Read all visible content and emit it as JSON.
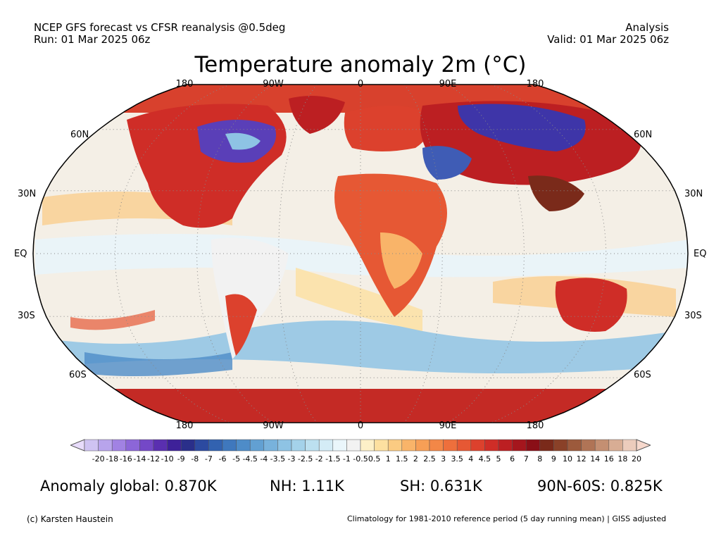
{
  "header": {
    "source_line": "NCEP GFS forecast vs CFSR reanalysis @0.5deg",
    "run_line": "Run: 01 Mar 2025 06z",
    "analysis_label": "Analysis",
    "valid_line": "Valid: 01 Mar 2025 06z"
  },
  "title": "Temperature anomaly 2m (°C)",
  "map": {
    "projection": "robinson",
    "graticule": "dotted",
    "lon_labels_top": [
      "180",
      "90W",
      "0",
      "90E",
      "180"
    ],
    "lon_labels_bottom": [
      "180",
      "90W",
      "0",
      "90E",
      "180"
    ],
    "lat_labels_left": [
      "60N",
      "30N",
      "EQ",
      "30S",
      "60S"
    ],
    "lat_labels_right": [
      "60N",
      "30N",
      "EQ",
      "30S",
      "60S"
    ],
    "background_color": "#f4efe6"
  },
  "colorbar": {
    "labels": [
      "-20",
      "-18",
      "-16",
      "-14",
      "-12",
      "-10",
      "-9",
      "-8",
      "-7",
      "-6",
      "-5",
      "-4.5",
      "-4",
      "-3.5",
      "-3",
      "-2.5",
      "-2",
      "-1.5",
      "-1",
      "-0.5",
      "0.5",
      "1",
      "1.5",
      "2",
      "2.5",
      "3",
      "3.5",
      "4",
      "4.5",
      "5",
      "6",
      "7",
      "8",
      "9",
      "10",
      "12",
      "14",
      "16",
      "18",
      "20"
    ],
    "colors": [
      "#cfc3f2",
      "#b8a4ec",
      "#a182e3",
      "#8c66d8",
      "#7448c7",
      "#5a2fb0",
      "#3e2199",
      "#2a2f8a",
      "#2c4aa0",
      "#3262b0",
      "#3f78bd",
      "#4e8cc8",
      "#62a0d2",
      "#78b2dc",
      "#8ec3e4",
      "#a4d2ea",
      "#bce0f0",
      "#d4ecf6",
      "#eaf6fb",
      "#f2f2f2",
      "#fdf0c8",
      "#fde0a0",
      "#fbcb82",
      "#f9b469",
      "#f79f56",
      "#f38747",
      "#ee6f3c",
      "#e65834",
      "#dc412d",
      "#cf2d27",
      "#bc1f22",
      "#a5161d",
      "#8a0f17",
      "#7a2a1a",
      "#8a4128",
      "#9c5a3c",
      "#b07456",
      "#c48f72",
      "#d8ad94",
      "#ecccbc"
    ],
    "under_color": "#e8dcfb",
    "over_color": "#f6d8cc"
  },
  "stats": {
    "global": "Anomaly global: 0.870K",
    "nh": "NH: 1.11K",
    "sh": "SH: 0.631K",
    "band": "90N-60S: 0.825K"
  },
  "footer": {
    "credit": "(c) Karsten Haustein",
    "note": "Climatology for 1981-2010 reference period (5 day running mean) | GISS adjusted"
  }
}
